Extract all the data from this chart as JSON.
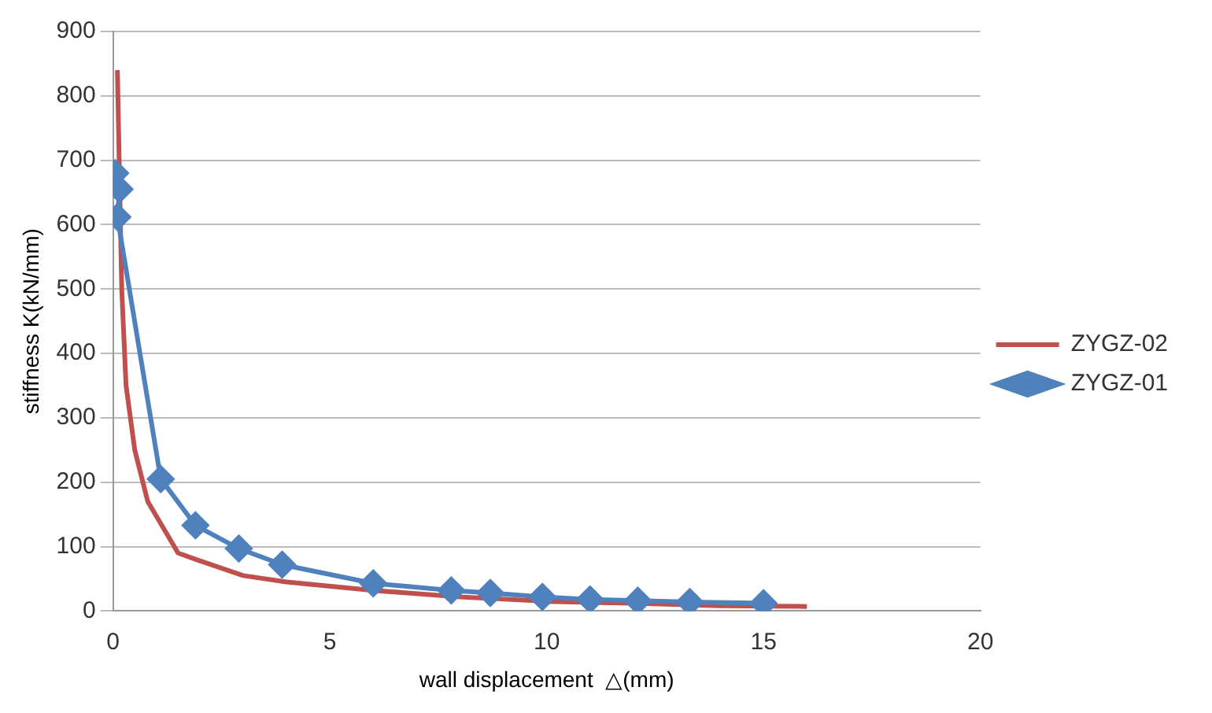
{
  "chart_data": {
    "type": "line",
    "xlabel": "wall displacement  △(mm)",
    "ylabel": "stiffness K(kN/mm)",
    "xlim": [
      0,
      20
    ],
    "xticks": [
      0,
      5,
      10,
      15,
      20
    ],
    "ylim": [
      0,
      900
    ],
    "yticks": [
      0,
      100,
      200,
      300,
      400,
      500,
      600,
      700,
      800,
      900
    ],
    "grid": "y",
    "legend": "right",
    "line_style": "solid",
    "series": [
      {
        "name": "ZYGZ-02",
        "color": "#c0504d",
        "marker": "none",
        "x": [
          0.1,
          0.2,
          0.3,
          0.5,
          0.8,
          1.5,
          2,
          3,
          4,
          6,
          8,
          10,
          12,
          14,
          16
        ],
        "values": [
          840,
          500,
          350,
          250,
          170,
          90,
          78,
          55,
          45,
          32,
          22,
          15,
          12,
          8,
          7
        ]
      },
      {
        "name": "ZYGZ-01",
        "color": "#4f81bd",
        "marker": "diamond",
        "x": [
          0.05,
          0.15,
          0.1,
          1.1,
          1.9,
          2.9,
          3.9,
          6.0,
          7.8,
          8.7,
          9.9,
          11.0,
          12.1,
          13.3,
          15
        ],
        "values": [
          680,
          655,
          612,
          205,
          133,
          97,
          72,
          43,
          32,
          28,
          22,
          18,
          16,
          14,
          12
        ]
      }
    ]
  }
}
